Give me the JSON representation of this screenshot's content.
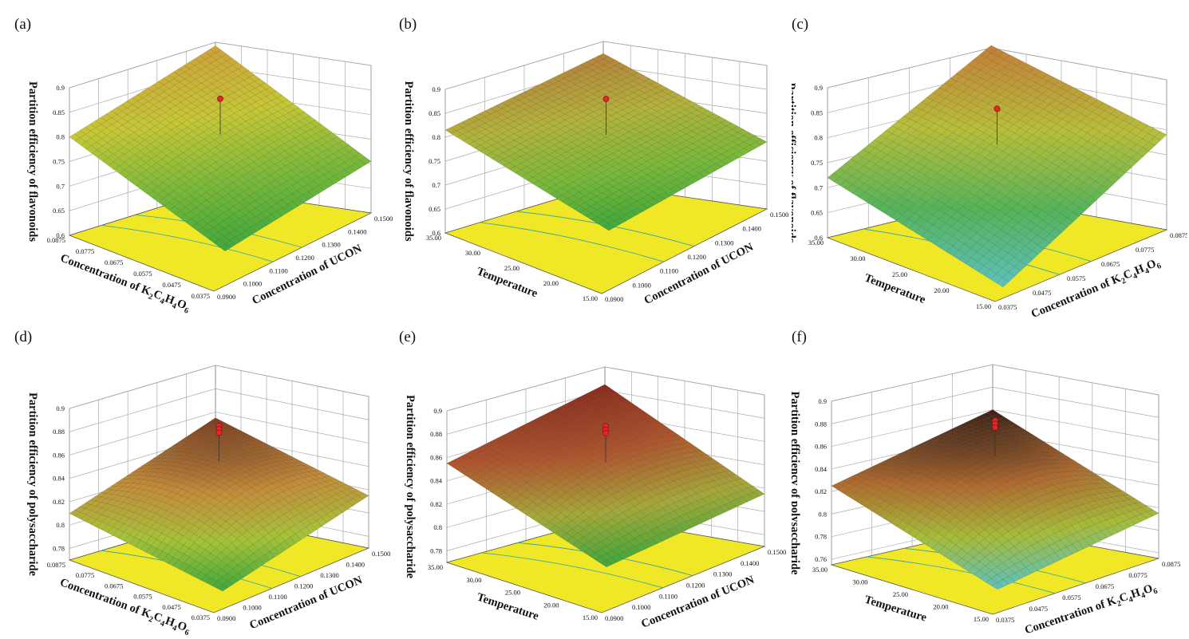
{
  "chart_data": [
    {
      "label": "(a)",
      "type": "surface",
      "zlabel": "Partition efficiency of flavonoids",
      "z_ticks": [
        "0.6",
        "0.65",
        "0.7",
        "0.75",
        "0.8",
        "0.85",
        "0.9"
      ],
      "zlim": [
        0.6,
        0.9
      ],
      "left_axis": {
        "label_html": "Concentration of K<tspan baseline-shift=\"-4\" font-size=\"10\">2</tspan>C<tspan baseline-shift=\"-4\" font-size=\"10\">4</tspan>H<tspan baseline-shift=\"-4\" font-size=\"10\">4</tspan>O<tspan baseline-shift=\"-4\" font-size=\"10\">6</tspan>",
        "ticks": [
          "0.0875",
          "0.0775",
          "0.0675",
          "0.0575",
          "0.0475",
          "0.0375"
        ]
      },
      "right_axis": {
        "label_html": "Concentration of UCON",
        "ticks": [
          "0.0900",
          "0.1000",
          "0.1100",
          "0.1200",
          "0.1300",
          "0.1400",
          "0.1500"
        ]
      },
      "corners": {
        "back": 0.893,
        "left": 0.8,
        "right": 0.705,
        "front": 0.615
      },
      "curvature": 0.04,
      "point_z": [
        0.855
      ],
      "colors": [
        "#3ea73e",
        "#79b83a",
        "#c6c735",
        "#cfa13a"
      ]
    },
    {
      "label": "(b)",
      "type": "surface",
      "zlabel": "Partition efficiency of flavonoids",
      "z_ticks": [
        "0.6",
        "0.65",
        "0.7",
        "0.75",
        "0.8",
        "0.85",
        "0.9"
      ],
      "zlim": [
        0.6,
        0.9
      ],
      "left_axis": {
        "label_html": "Temperature",
        "ticks": [
          "35.00",
          "30.00",
          "25.00",
          "20.00",
          "15.00"
        ]
      },
      "right_axis": {
        "label_html": "Concentration of UCON",
        "ticks": [
          "0.0900",
          "0.1000",
          "0.1100",
          "0.1200",
          "0.1300",
          "0.1400",
          "0.1500"
        ]
      },
      "corners": {
        "back": 0.875,
        "left": 0.815,
        "right": 0.74,
        "front": 0.655
      },
      "curvature": 0.015,
      "point_z": [
        0.855
      ],
      "colors": [
        "#3ea73e",
        "#79b83a",
        "#b3b33c",
        "#b7823a"
      ]
    },
    {
      "label": "(c)",
      "type": "surface",
      "zlabel": "Partition efficiency of flavonoids",
      "z_ticks": [
        "0.6",
        "0.65",
        "0.7",
        "0.75",
        "0.8",
        "0.85",
        "0.9"
      ],
      "zlim": [
        0.6,
        0.9
      ],
      "left_axis": {
        "label_html": "Temperature",
        "ticks": [
          "35.00",
          "30.00",
          "25.00",
          "20.00",
          "15.00"
        ]
      },
      "right_axis": {
        "label_html": "Concentration of K<tspan baseline-shift=\"-4\" font-size=\"10\">2</tspan>C<tspan baseline-shift=\"-4\" font-size=\"10\">4</tspan>H<tspan baseline-shift=\"-4\" font-size=\"10\">4</tspan>O<tspan baseline-shift=\"-4\" font-size=\"10\">6</tspan>",
        "ticks": [
          "0.0375",
          "0.0475",
          "0.0575",
          "0.0675",
          "0.0775",
          "0.0875"
        ]
      },
      "corners": {
        "back": 0.905,
        "left": 0.72,
        "right": 0.79,
        "front": 0.565
      },
      "curvature": 0.04,
      "point_z": [
        0.85
      ],
      "colors": [
        "#5cc0c0",
        "#55b35a",
        "#b8be3a",
        "#c47d38"
      ]
    },
    {
      "label": "(d)",
      "type": "surface",
      "zlabel": "Partition efficiency  of polysaccharide",
      "z_ticks": [
        "0.78",
        "0.8",
        "0.82",
        "0.84",
        "0.86",
        "0.88",
        "0.9"
      ],
      "zlim": [
        0.77,
        0.9
      ],
      "left_axis": {
        "label_html": "Concentration of K<tspan baseline-shift=\"-4\" font-size=\"10\">2</tspan>C<tspan baseline-shift=\"-4\" font-size=\"10\">4</tspan>H<tspan baseline-shift=\"-4\" font-size=\"10\">4</tspan>O<tspan baseline-shift=\"-4\" font-size=\"10\">6</tspan>",
        "ticks": [
          "0.0875",
          "0.0775",
          "0.0675",
          "0.0575",
          "0.0475",
          "0.0375"
        ]
      },
      "right_axis": {
        "label_html": "Concentration of UCON",
        "ticks": [
          "0.0900",
          "0.1000",
          "0.1100",
          "0.1200",
          "0.1300",
          "0.1400",
          "0.1500"
        ]
      },
      "corners": {
        "back": 0.855,
        "left": 0.81,
        "right": 0.815,
        "front": 0.77
      },
      "curvature": 0.08,
      "point_z": [
        0.88,
        0.877,
        0.874
      ],
      "colors": [
        "#3ea73e",
        "#a6c23a",
        "#c58c3a",
        "#7a3b22"
      ]
    },
    {
      "label": "(e)",
      "type": "surface",
      "zlabel": "Partition efficiency of polysaccharide",
      "z_ticks": [
        "0.78",
        "0.8",
        "0.82",
        "0.84",
        "0.86",
        "0.88",
        "0.9"
      ],
      "zlim": [
        0.77,
        0.9
      ],
      "left_axis": {
        "label_html": "Temperature",
        "ticks": [
          "35.00",
          "30.00",
          "25.00",
          "20.00",
          "15.00"
        ]
      },
      "right_axis": {
        "label_html": "Concentration of UCON",
        "ticks": [
          "0.0900",
          "0.1000",
          "0.1100",
          "0.1200",
          "0.1300",
          "0.1400",
          "0.1500"
        ]
      },
      "corners": {
        "back": 0.885,
        "left": 0.855,
        "right": 0.815,
        "front": 0.79
      },
      "curvature": 0.05,
      "point_z": [
        0.88,
        0.877,
        0.874
      ],
      "colors": [
        "#3ea73e",
        "#a6a83a",
        "#b0552e",
        "#8a2a1e"
      ]
    },
    {
      "label": "(f)",
      "type": "surface",
      "zlabel": "Partition efficiency of polysaccharide",
      "z_ticks": [
        "0.76",
        "0.78",
        "0.8",
        "0.82",
        "0.84",
        "0.86",
        "0.88",
        "0.9"
      ],
      "zlim": [
        0.755,
        0.9
      ],
      "left_axis": {
        "label_html": "Temperature",
        "ticks": [
          "35.00",
          "30.00",
          "25.00",
          "20.00",
          "15.00"
        ]
      },
      "right_axis": {
        "label_html": "Concentration of K<tspan baseline-shift=\"-4\" font-size=\"10\">2</tspan>C<tspan baseline-shift=\"-4\" font-size=\"10\">4</tspan>H<tspan baseline-shift=\"-4\" font-size=\"10\">4</tspan>O<tspan baseline-shift=\"-4\" font-size=\"10\">6</tspan>",
        "ticks": [
          "0.0375",
          "0.0475",
          "0.0575",
          "0.0675",
          "0.0775",
          "0.0875"
        ]
      },
      "corners": {
        "back": 0.86,
        "left": 0.825,
        "right": 0.795,
        "front": 0.76
      },
      "curvature": 0.09,
      "point_z": [
        0.88,
        0.877,
        0.874
      ],
      "colors": [
        "#5cc0c0",
        "#a6bc3a",
        "#b06a30",
        "#3a1e18"
      ]
    }
  ]
}
